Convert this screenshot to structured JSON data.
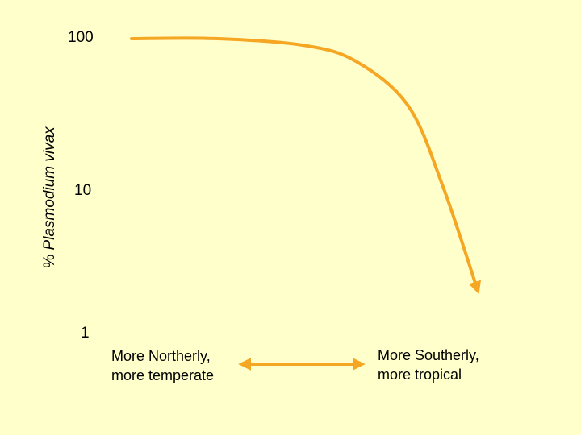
{
  "chart_data": {
    "type": "line",
    "y_scale": "log",
    "ylim": [
      1,
      100
    ],
    "ytick_labels": [
      "1",
      "10",
      "100"
    ],
    "ylabel": {
      "prefix": "% ",
      "italic": "Plasmodium vivax"
    },
    "x_axis_labels": {
      "left": [
        "More Northerly,",
        "more temperate"
      ],
      "right": [
        "More Southerly,",
        "more tropical"
      ]
    },
    "series": [
      {
        "style": "curved arrow",
        "x": [
          0,
          0.25,
          0.5,
          0.65,
          0.8,
          0.9,
          1.0
        ],
        "y": [
          100,
          100,
          90,
          70,
          35,
          10,
          2
        ]
      }
    ],
    "line_color": "#f5a623",
    "background": "#ffffcc",
    "grid": false,
    "legend": "none"
  }
}
